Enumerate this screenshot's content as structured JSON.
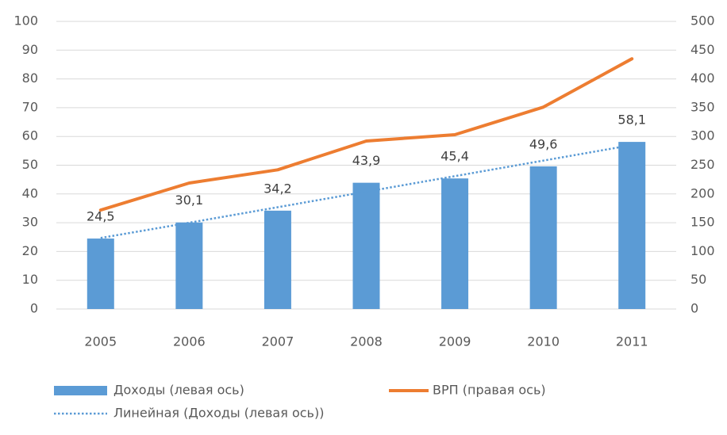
{
  "chart_data": {
    "type": "bar",
    "categories": [
      "2005",
      "2006",
      "2007",
      "2008",
      "2009",
      "2010",
      "2011"
    ],
    "series": [
      {
        "name": "Доходы (левая ось)",
        "type": "bar",
        "color": "#5b9bd5",
        "values": [
          24.5,
          30.1,
          34.2,
          43.9,
          45.4,
          49.6,
          58.1
        ],
        "value_labels": [
          "24,5",
          "30,1",
          "34,2",
          "43,9",
          "45,4",
          "49,6",
          "58,1"
        ]
      },
      {
        "name": "ВРП (правая ось)",
        "type": "line",
        "axis": "y2",
        "color": "#ed7d31",
        "values": [
          172,
          219,
          242,
          292,
          303,
          351,
          435
        ]
      },
      {
        "name": "Линейная (Доходы (левая ось))",
        "type": "line",
        "style": "dotted",
        "color": "#5b9bd5",
        "values": [
          24.7,
          30.0,
          35.4,
          40.8,
          46.2,
          51.6,
          57.0
        ]
      }
    ],
    "ylim": [
      0,
      100
    ],
    "yticks": [
      0,
      10,
      20,
      30,
      40,
      50,
      60,
      70,
      80,
      90,
      100
    ],
    "y2lim": [
      0,
      500
    ],
    "y2ticks": [
      0,
      50,
      100,
      150,
      200,
      250,
      300,
      350,
      400,
      450,
      500
    ],
    "grid": true,
    "legend": "bottom"
  }
}
